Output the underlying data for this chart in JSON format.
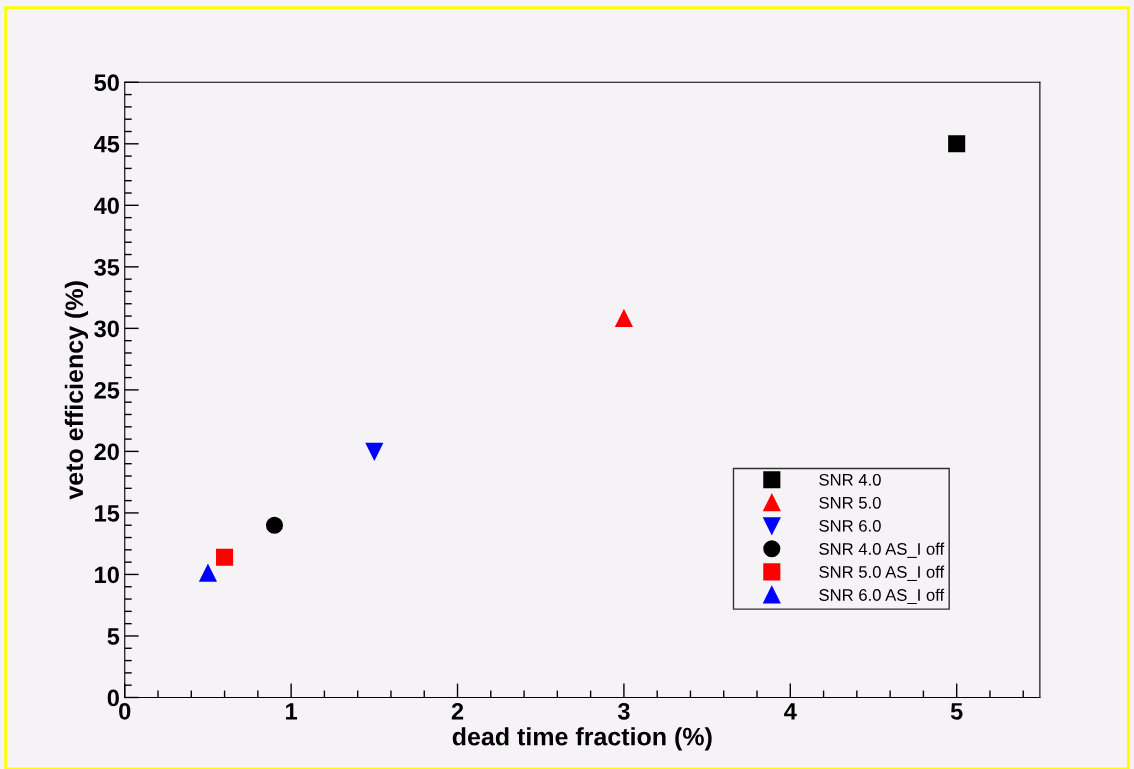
{
  "chart_data": {
    "type": "scatter",
    "xlabel": "dead time fraction (%)",
    "ylabel": "veto efficiency (%)",
    "xlim": [
      0,
      5.5
    ],
    "xticks": [
      0,
      1,
      2,
      3,
      4,
      5
    ],
    "ylim": [
      0,
      50
    ],
    "yticks": [
      0,
      5,
      10,
      15,
      20,
      25,
      30,
      35,
      40,
      45,
      50
    ],
    "grid": false,
    "legend": "bottom right",
    "series": [
      {
        "name": "SNR 4.0",
        "color": "#000000",
        "marker": "square",
        "x": [
          5
        ],
        "values": [
          45.0
        ]
      },
      {
        "name": "SNR 5.0",
        "color": "#ff0000",
        "marker": "triangle",
        "x": [
          3
        ],
        "values": [
          30.8
        ]
      },
      {
        "name": "SNR 6.0",
        "color": "#0000ff",
        "marker": "triangle_down",
        "x": [
          1.5
        ],
        "values": [
          20.0
        ]
      },
      {
        "name": "SNR 4.0 AS_I off",
        "color": "#000000",
        "marker": "circle",
        "x": [
          0.9
        ],
        "values": [
          14.0
        ]
      },
      {
        "name": "SNR 5.0 AS_I off",
        "color": "#ff0000",
        "marker": "square",
        "x": [
          0.6
        ],
        "values": [
          11.4
        ]
      },
      {
        "name": "SNR 6.0 AS_I off",
        "color": "#0000ff",
        "marker": "triangle",
        "x": [
          0.5
        ],
        "values": [
          10.1
        ]
      }
    ]
  }
}
